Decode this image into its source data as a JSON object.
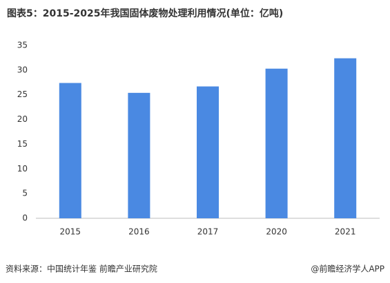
{
  "chart_data": {
    "type": "bar",
    "title": "图表5：2015-2025年我国固体废物处理利用情况(单位：亿吨)",
    "categories": [
      "2015",
      "2016",
      "2017",
      "2020",
      "2021"
    ],
    "values": [
      27.4,
      25.4,
      26.7,
      30.3,
      32.4
    ],
    "color": "#4a89e2",
    "ylim": [
      0,
      35
    ],
    "yticks": [
      0,
      5,
      10,
      15,
      20,
      25,
      30,
      35
    ],
    "grid": false,
    "source": "资料来源：中国统计年鉴 前瞻产业研究院",
    "credit": "@前瞻经济学人APP"
  }
}
